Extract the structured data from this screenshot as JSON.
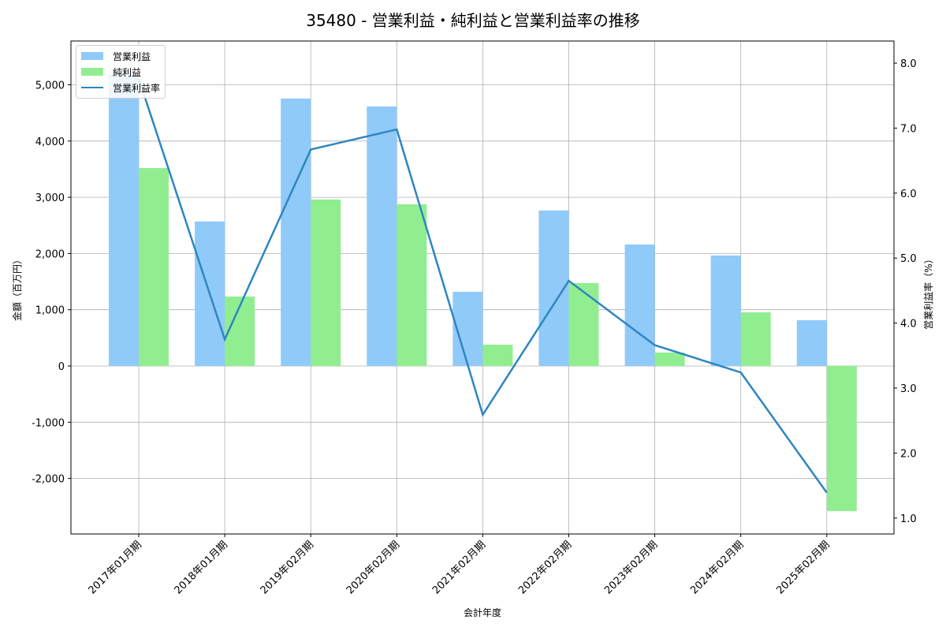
{
  "chart_data": {
    "type": "bar",
    "title": "35480 - 営業利益・純利益と営業利益率の推移",
    "xlabel": "会計年度",
    "ylabel": "金額（百万円）",
    "y2label": "営業利益率（%）",
    "categories": [
      "2017年01月期",
      "2018年01月期",
      "2019年02月期",
      "2020年02月期",
      "2021年02月期",
      "2022年02月期",
      "2023年02月期",
      "2024年02月期",
      "2025年02月期"
    ],
    "series": [
      {
        "name": "営業利益",
        "type": "bar",
        "axis": "left",
        "color": "#90caf9",
        "values": [
          5200,
          2570,
          4755,
          4615,
          1320,
          2765,
          2160,
          1965,
          815
        ]
      },
      {
        "name": "純利益",
        "type": "bar",
        "axis": "left",
        "color": "#90ee90",
        "values": [
          3520,
          1235,
          2960,
          2875,
          380,
          1475,
          240,
          955,
          -2580
        ]
      },
      {
        "name": "営業利益率",
        "type": "line",
        "axis": "right",
        "color": "#2e86c1",
        "values": [
          7.76,
          3.75,
          6.67,
          6.98,
          2.59,
          4.65,
          3.66,
          3.24,
          1.39
        ]
      }
    ],
    "ylim": [
      -2950,
      5750
    ],
    "y2lim": [
      0.75,
      8.3
    ],
    "yticks": [
      -2000,
      -1000,
      0,
      1000,
      2000,
      3000,
      4000,
      5000
    ],
    "ytick_labels": [
      "-2,000",
      "-1,000",
      "0",
      "1,000",
      "2,000",
      "3,000",
      "4,000",
      "5,000"
    ],
    "y2ticks": [
      1.0,
      2.0,
      3.0,
      4.0,
      5.0,
      6.0,
      7.0,
      8.0
    ],
    "y2tick_labels": [
      "1.0",
      "2.0",
      "3.0",
      "4.0",
      "5.0",
      "6.0",
      "7.0",
      "8.0"
    ],
    "grid": true,
    "legend_position": "upper left"
  },
  "legend": {
    "items": [
      {
        "label": "営業利益",
        "color": "#90caf9",
        "kind": "bar"
      },
      {
        "label": "純利益",
        "color": "#90ee90",
        "kind": "bar"
      },
      {
        "label": "営業利益率",
        "color": "#2e86c1",
        "kind": "line"
      }
    ]
  }
}
